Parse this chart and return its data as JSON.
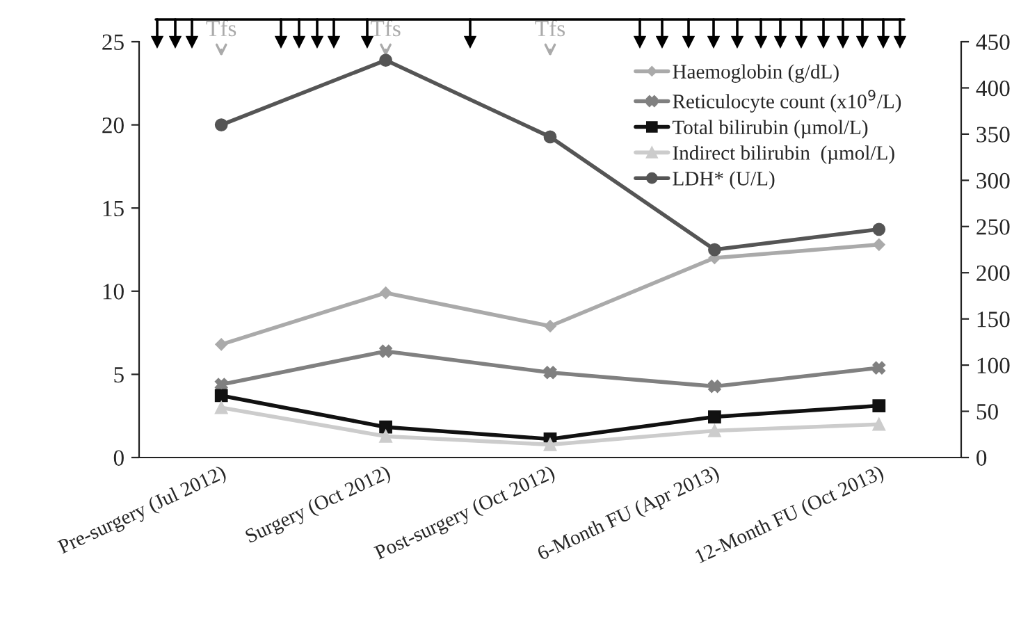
{
  "chart_data": {
    "type": "line",
    "categories": [
      "Pre-surgery (Jul 2012)",
      "Surgery (Oct 2012)",
      "Post-surgery (Oct 2012)",
      "6-Month FU (Apr 2013)",
      "12-Month FU (Oct 2013)"
    ],
    "series": [
      {
        "name": "Haemoglobin (g/dL)",
        "color": "#aaaaaa",
        "marker": "diamond",
        "values": [
          6.8,
          9.9,
          7.9,
          12.0,
          12.8
        ]
      },
      {
        "name": "Reticulocyte count (x10$^{9}$/L)",
        "color": "#808080",
        "marker": "cross",
        "axis": "y2",
        "values": [
          79,
          115,
          92,
          77,
          97
        ]
      },
      {
        "name": "Total bilirubin (µmol/L)",
        "color": "#111111",
        "marker": "square",
        "axis": "y2",
        "values": [
          67,
          33,
          20,
          44,
          56
        ]
      },
      {
        "name": "Indirect bilirubin  (µmol/L)",
        "color": "#cccccc",
        "marker": "triangle",
        "axis": "y2",
        "values": [
          54,
          23,
          14,
          29,
          36
        ]
      },
      {
        "name": "LDH* (U/L)",
        "color": "#555555",
        "marker": "circle",
        "axis": "y2",
        "values": [
          360,
          430,
          347,
          225,
          247
        ]
      }
    ],
    "ylim": [
      0,
      25
    ],
    "yticks": [
      0,
      5,
      10,
      15,
      20,
      25
    ],
    "y2lim": [
      0,
      450
    ],
    "y2ticks": [
      0,
      50,
      100,
      150,
      200,
      250,
      300,
      350,
      400,
      450
    ],
    "legend": "top right",
    "grid": false,
    "annotations": [
      {
        "text": "Tfs",
        "x": "Pre-surgery (Jul 2012)"
      },
      {
        "text": "Tfs",
        "x": "Surgery (Oct 2012)"
      },
      {
        "text": "Tfs",
        "x": "Post-surgery (Oct 2012)"
      }
    ]
  }
}
